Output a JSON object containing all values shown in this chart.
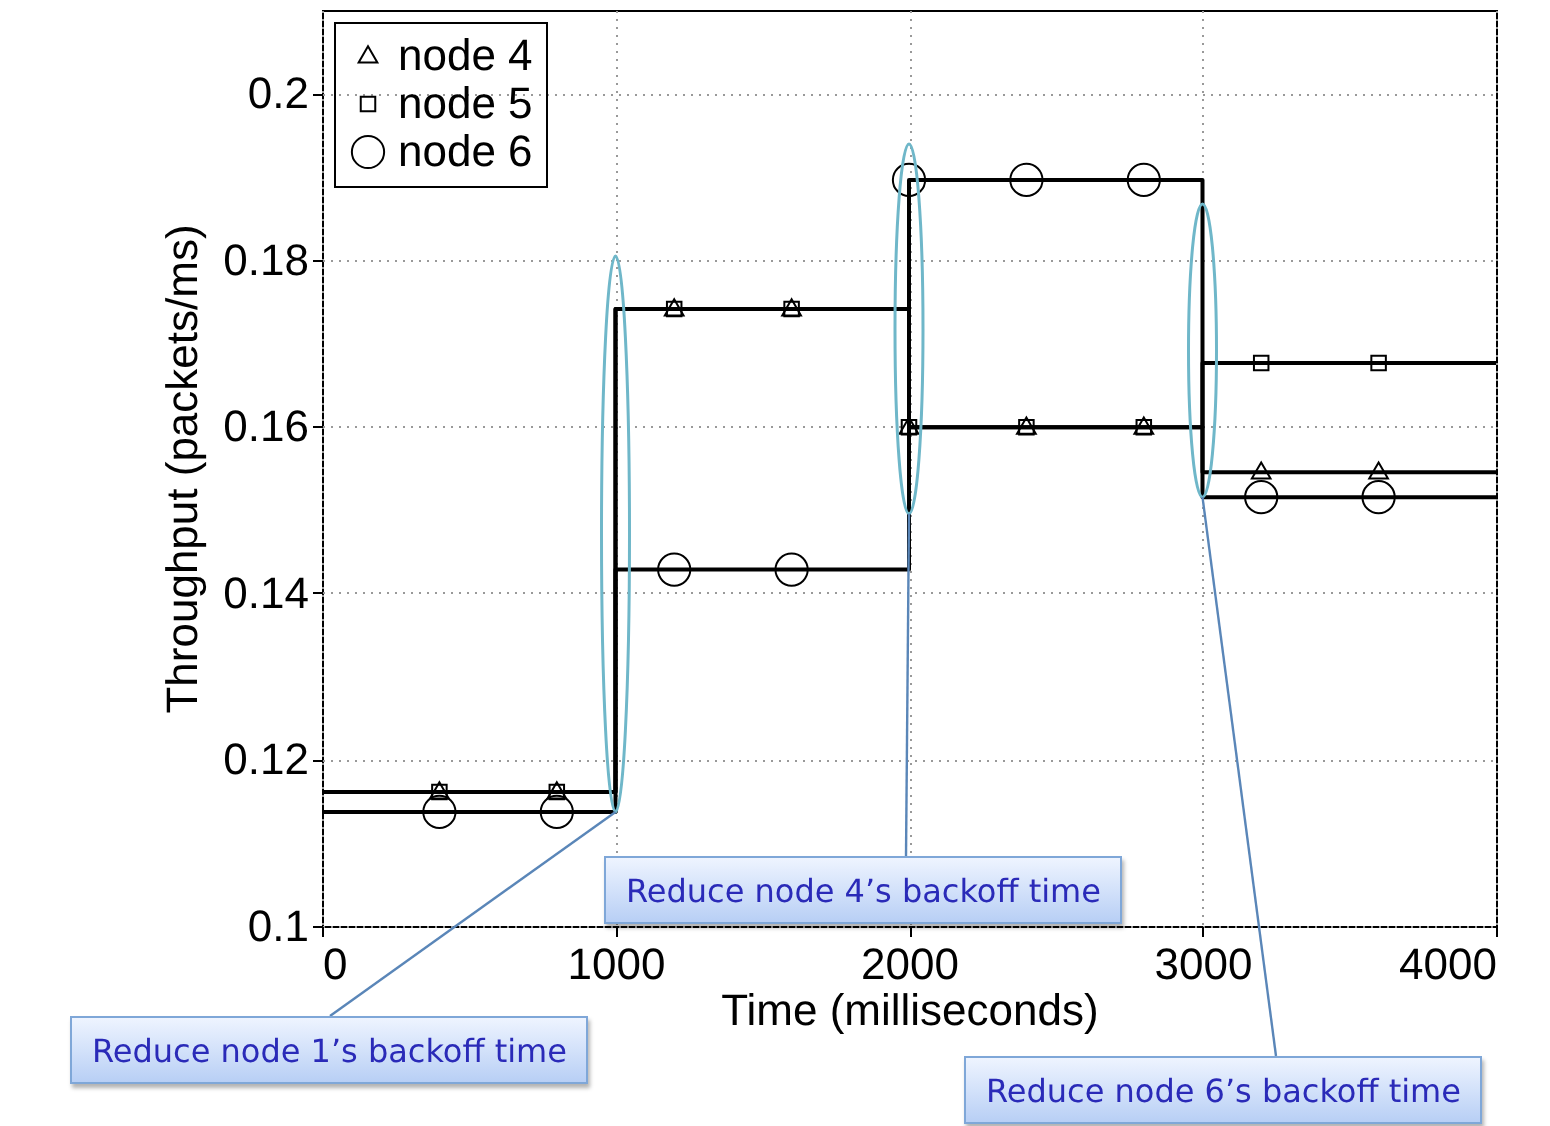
{
  "chart_data": {
    "type": "step",
    "xlabel": "Time (milliseconds)",
    "ylabel": "Throughput (packets/ms)",
    "xlim": [
      0,
      4000
    ],
    "ylim": [
      0.1,
      0.21
    ],
    "xticks": [
      0,
      1000,
      2000,
      3000,
      4000
    ],
    "yticks": [
      0.1,
      0.12,
      0.14,
      0.16,
      0.18,
      0.2
    ],
    "grid": true,
    "legend": "top left",
    "series": [
      {
        "type": "step",
        "color": "#000000",
        "x": [
          0,
          1000,
          2000,
          3000,
          4000
        ],
        "values": [
          0.1161,
          0.1741,
          0.1599,
          0.1545,
          0.1545
        ],
        "marker": "none"
      },
      {
        "type": "step",
        "color": "#000000",
        "x": [
          0,
          1000,
          2000,
          3000,
          4000
        ],
        "values": [
          0.1161,
          0.1741,
          0.1599,
          0.1676,
          0.1676
        ],
        "marker": "none"
      },
      {
        "type": "step",
        "color": "#000000",
        "x": [
          0,
          1000,
          2000,
          3000,
          4000
        ],
        "values": [
          0.1137,
          0.1428,
          0.1896,
          0.1515,
          0.1515
        ],
        "marker": "none"
      },
      {
        "type": "scatter",
        "name": "node 4",
        "color": "#000000",
        "marker": "triangle",
        "x": [
          400,
          800,
          1200,
          1600,
          2000,
          2400,
          2800,
          3200,
          3600
        ],
        "values": [
          0.1161,
          0.1161,
          0.1741,
          0.1741,
          0.1599,
          0.1599,
          0.1599,
          0.1545,
          0.1545
        ]
      },
      {
        "type": "scatter",
        "name": "node 5",
        "color": "#000000",
        "marker": "square",
        "x": [
          400,
          800,
          1200,
          1600,
          2000,
          2400,
          2800,
          3200,
          3600
        ],
        "values": [
          0.1161,
          0.1161,
          0.1741,
          0.1741,
          0.1599,
          0.1599,
          0.1599,
          0.1676,
          0.1676
        ]
      },
      {
        "type": "scatter",
        "name": "node 6",
        "color": "#000000",
        "marker": "circle",
        "x": [
          400,
          800,
          1200,
          1600,
          2000,
          2400,
          2800,
          3200,
          3600
        ],
        "values": [
          0.1137,
          0.1137,
          0.1428,
          0.1428,
          0.1896,
          0.1896,
          0.1896,
          0.1515,
          0.1515
        ]
      }
    ],
    "annotations": [
      {
        "text": "Reduce node 1’s backoff time",
        "x": 1000,
        "y": 0.1137
      },
      {
        "text": "Reduce node 4’s backoff time",
        "x": 2000,
        "y": 0.1495
      },
      {
        "text": "Reduce node 6’s backoff time",
        "x": 3000,
        "y": 0.1515
      }
    ]
  }
}
